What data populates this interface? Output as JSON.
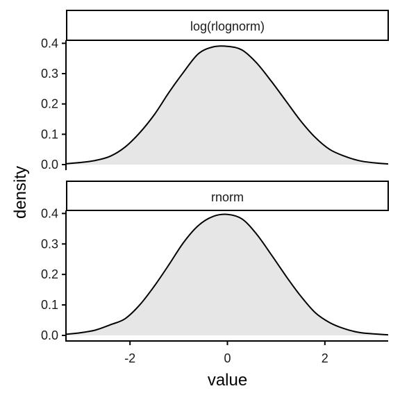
{
  "chart_data": {
    "type": "area",
    "xlabel": "value",
    "ylabel": "density",
    "xlim": [
      -3.3,
      3.3
    ],
    "ylim": [
      0,
      0.41
    ],
    "x_ticks": [
      -2,
      0,
      2
    ],
    "x_tick_labels": [
      "-2",
      "0",
      "2"
    ],
    "y_ticks": [
      0,
      0.1,
      0.2,
      0.3,
      0.4
    ],
    "y_tick_labels": [
      "0.0",
      "0.1",
      "0.2",
      "0.3",
      "0.4"
    ],
    "grid": false,
    "fill_color": "#e6e6e6",
    "line_color": "#000000",
    "panels": [
      {
        "strip": "log(rlognorm)",
        "x": [
          -3.3,
          -3.0,
          -2.7,
          -2.4,
          -2.1,
          -1.8,
          -1.5,
          -1.2,
          -0.9,
          -0.6,
          -0.3,
          0.0,
          0.3,
          0.6,
          0.9,
          1.2,
          1.5,
          1.8,
          2.1,
          2.4,
          2.7,
          3.0,
          3.3
        ],
        "y": [
          0.003,
          0.007,
          0.014,
          0.028,
          0.058,
          0.105,
          0.165,
          0.238,
          0.305,
          0.365,
          0.388,
          0.39,
          0.378,
          0.335,
          0.275,
          0.21,
          0.145,
          0.09,
          0.05,
          0.028,
          0.013,
          0.006,
          0.002
        ]
      },
      {
        "strip": "rnorm",
        "x": [
          -3.3,
          -3.0,
          -2.7,
          -2.4,
          -2.1,
          -1.8,
          -1.5,
          -1.2,
          -0.9,
          -0.6,
          -0.3,
          0.0,
          0.3,
          0.6,
          0.9,
          1.2,
          1.5,
          1.8,
          2.1,
          2.4,
          2.7,
          3.0,
          3.3
        ],
        "y": [
          0.004,
          0.009,
          0.018,
          0.035,
          0.055,
          0.1,
          0.162,
          0.232,
          0.305,
          0.36,
          0.39,
          0.397,
          0.382,
          0.332,
          0.265,
          0.195,
          0.13,
          0.075,
          0.042,
          0.022,
          0.01,
          0.005,
          0.002
        ]
      }
    ]
  }
}
